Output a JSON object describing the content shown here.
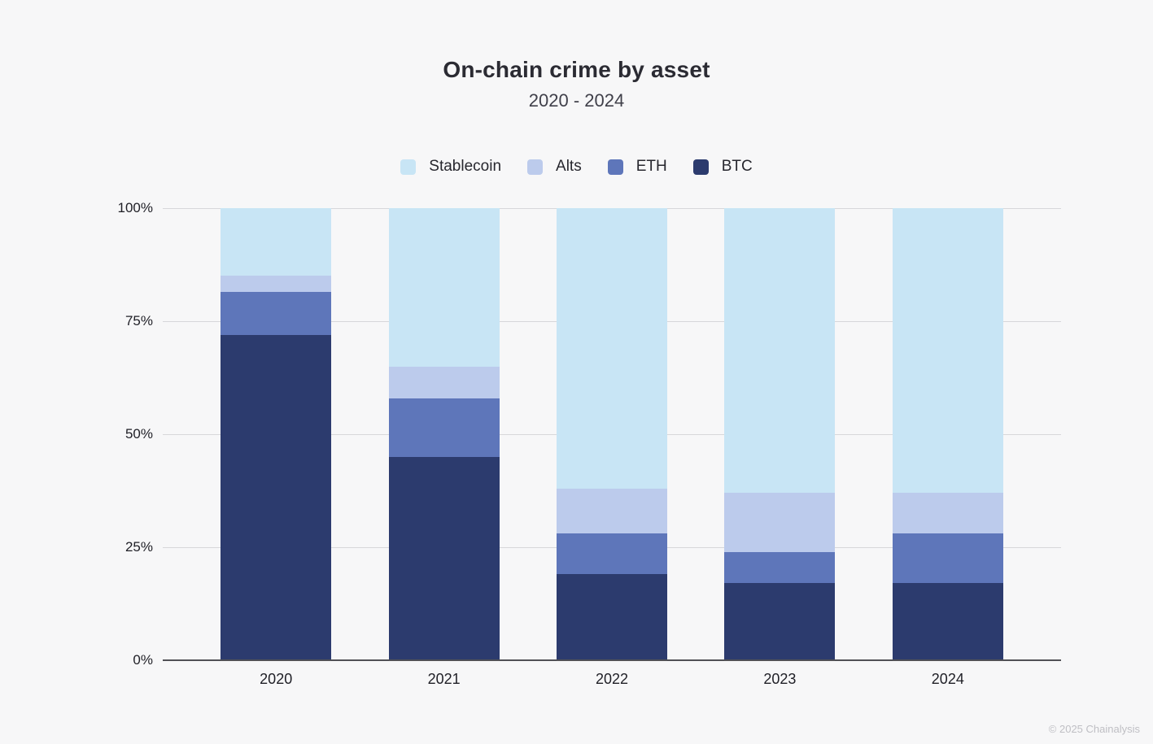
{
  "page": {
    "background": "#f7f7f8",
    "footer": "© 2025 Chainalysis"
  },
  "chart_data": {
    "type": "bar",
    "stacked": true,
    "percent_stacked": true,
    "title": "On-chain crime by asset",
    "subtitle": "2020 - 2024",
    "categories": [
      "2020",
      "2021",
      "2022",
      "2023",
      "2024"
    ],
    "unit": "%",
    "ylim": [
      0,
      100
    ],
    "yticks": [
      0,
      25,
      50,
      75,
      100
    ],
    "grid": "horizontal",
    "legend_position": "top",
    "stack_order_bottom_to_top": [
      "BTC",
      "ETH",
      "Alts",
      "Stablecoin"
    ],
    "series": [
      {
        "name": "Stablecoin",
        "color": "#c8e5f5",
        "values": [
          15,
          35,
          62,
          63,
          63
        ]
      },
      {
        "name": "Alts",
        "color": "#bccbec",
        "values": [
          3.5,
          7,
          10,
          13,
          9
        ]
      },
      {
        "name": "ETH",
        "color": "#5e76ba",
        "values": [
          9.5,
          13,
          9,
          7,
          11
        ]
      },
      {
        "name": "BTC",
        "color": "#2c3b6e",
        "values": [
          72,
          45,
          19,
          17,
          17
        ]
      }
    ],
    "colors": {
      "gridline": "#d7d7da",
      "baseline": "#515156",
      "title_text": "#2b2b33",
      "tick_text": "#1f1f26",
      "footer_text": "#bfbfc4"
    }
  }
}
